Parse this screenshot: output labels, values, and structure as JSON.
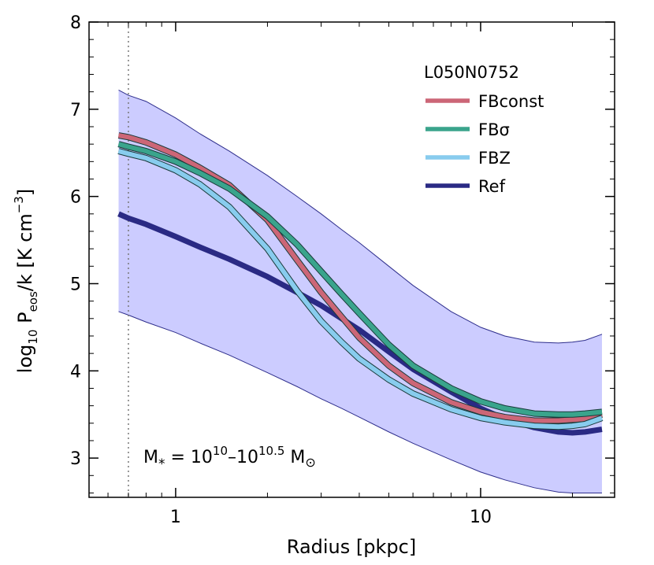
{
  "chart_data": {
    "type": "line",
    "xlabel": {
      "main": "Radius [pkpc]"
    },
    "ylabel": {
      "prefix": "log",
      "sub": "10",
      "mid": " P",
      "sub2": "eos",
      "after": "/k [K cm",
      "sup": "−3",
      "close": "]"
    },
    "xscale": "log",
    "xlim": [
      0.52,
      27.5
    ],
    "ylim": [
      2.55,
      8.0
    ],
    "xticks": [
      {
        "value": 1,
        "label": "1"
      },
      {
        "value": 10,
        "label": "10"
      }
    ],
    "yticks": [
      {
        "value": 3,
        "label": "3"
      },
      {
        "value": 4,
        "label": "4"
      },
      {
        "value": 5,
        "label": "5"
      },
      {
        "value": 6,
        "label": "6"
      },
      {
        "value": 7,
        "label": "7"
      },
      {
        "value": 8,
        "label": "8"
      }
    ],
    "vline_x": 0.7,
    "legend": {
      "title": "L050N0752",
      "position": "top-right"
    },
    "annotation": {
      "base": "M",
      "sub": "*",
      "eq": " = 10",
      "e1": "10",
      "dash": "–10",
      "e2": "10.5",
      "unit": " M",
      "sun": "⊙"
    },
    "x": [
      0.65,
      0.7,
      0.8,
      1.0,
      1.2,
      1.5,
      2.0,
      2.5,
      3.0,
      3.5,
      4.0,
      5.0,
      6.0,
      8.0,
      10.0,
      12.0,
      15.0,
      18.0,
      20.0,
      22.0,
      25.0
    ],
    "band": {
      "color": "#ccccff",
      "edge_color": "#2e2e8c",
      "upper": [
        7.22,
        7.16,
        7.09,
        6.9,
        6.72,
        6.52,
        6.24,
        6.0,
        5.8,
        5.62,
        5.47,
        5.2,
        4.98,
        4.68,
        4.5,
        4.4,
        4.33,
        4.32,
        4.33,
        4.35,
        4.42
      ],
      "lower": [
        4.68,
        4.64,
        4.56,
        4.44,
        4.32,
        4.18,
        3.98,
        3.82,
        3.68,
        3.57,
        3.47,
        3.3,
        3.17,
        2.98,
        2.84,
        2.75,
        2.66,
        2.61,
        2.6,
        2.6,
        2.6
      ]
    },
    "series": [
      {
        "name": "FBconst",
        "color": "#cc6677",
        "width": 6,
        "outline": true,
        "values": [
          6.7,
          6.68,
          6.62,
          6.48,
          6.33,
          6.13,
          5.73,
          5.27,
          4.9,
          4.62,
          4.38,
          4.06,
          3.86,
          3.64,
          3.53,
          3.47,
          3.43,
          3.43,
          3.44,
          3.45,
          3.5
        ]
      },
      {
        "name": "FBσ",
        "color": "#3aa48c",
        "width": 6,
        "outline": true,
        "values": [
          6.6,
          6.57,
          6.52,
          6.4,
          6.27,
          6.09,
          5.77,
          5.45,
          5.14,
          4.88,
          4.66,
          4.3,
          4.06,
          3.8,
          3.65,
          3.57,
          3.51,
          3.5,
          3.5,
          3.51,
          3.53
        ]
      },
      {
        "name": "FBZ",
        "color": "#88ccee",
        "width": 6,
        "outline": true,
        "values": [
          6.52,
          6.49,
          6.44,
          6.3,
          6.14,
          5.88,
          5.4,
          4.92,
          4.57,
          4.33,
          4.14,
          3.9,
          3.74,
          3.56,
          3.46,
          3.41,
          3.37,
          3.36,
          3.37,
          3.39,
          3.46
        ]
      },
      {
        "name": "Ref",
        "color": "#2a2a84",
        "width": 7,
        "outline": false,
        "values": [
          5.8,
          5.75,
          5.68,
          5.54,
          5.42,
          5.28,
          5.08,
          4.9,
          4.75,
          4.6,
          4.47,
          4.22,
          4.02,
          3.76,
          3.57,
          3.45,
          3.35,
          3.3,
          3.29,
          3.3,
          3.33
        ]
      }
    ]
  }
}
